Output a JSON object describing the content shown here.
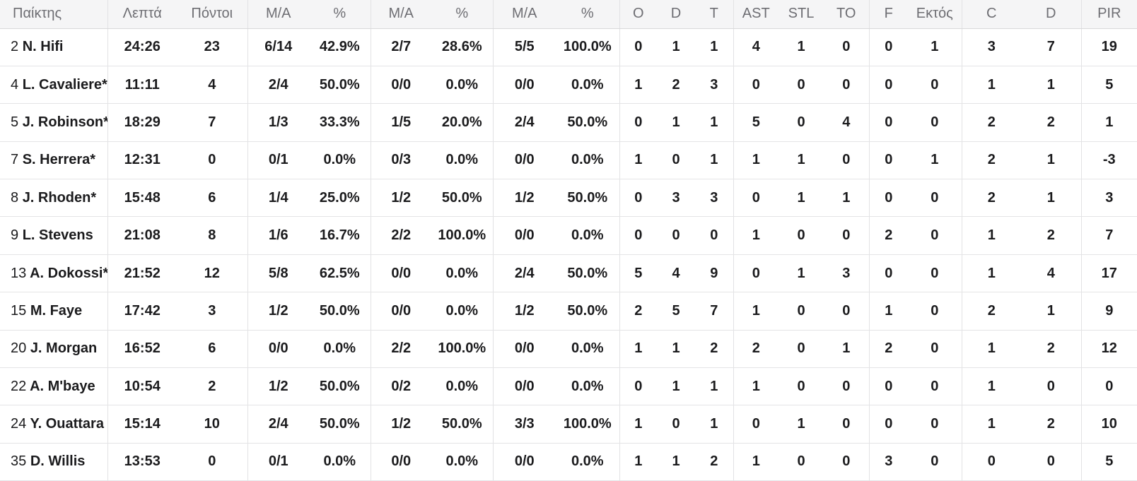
{
  "table": {
    "columns": [
      {
        "label": "Παίκτης"
      },
      {
        "label": "Λεπτά"
      },
      {
        "label": "Πόντοι"
      },
      {
        "label": "M/A"
      },
      {
        "label": "%"
      },
      {
        "label": "M/A"
      },
      {
        "label": "%"
      },
      {
        "label": "M/A"
      },
      {
        "label": "%"
      },
      {
        "label": "O"
      },
      {
        "label": "D"
      },
      {
        "label": "T"
      },
      {
        "label": "AST"
      },
      {
        "label": "STL"
      },
      {
        "label": "TO"
      },
      {
        "label": "F"
      },
      {
        "label": "Εκτός"
      },
      {
        "label": "C"
      },
      {
        "label": "D"
      },
      {
        "label": "PIR"
      }
    ],
    "rows": [
      {
        "number": "2",
        "name": "N. Hifi",
        "cells": [
          "24:26",
          "23",
          "6/14",
          "42.9%",
          "2/7",
          "28.6%",
          "5/5",
          "100.0%",
          "0",
          "1",
          "1",
          "4",
          "1",
          "0",
          "0",
          "1",
          "3",
          "7",
          "19"
        ]
      },
      {
        "number": "4",
        "name": "L. Cavaliere*",
        "cells": [
          "11:11",
          "4",
          "2/4",
          "50.0%",
          "0/0",
          "0.0%",
          "0/0",
          "0.0%",
          "1",
          "2",
          "3",
          "0",
          "0",
          "0",
          "0",
          "0",
          "1",
          "1",
          "5"
        ]
      },
      {
        "number": "5",
        "name": "J. Robinson*",
        "cells": [
          "18:29",
          "7",
          "1/3",
          "33.3%",
          "1/5",
          "20.0%",
          "2/4",
          "50.0%",
          "0",
          "1",
          "1",
          "5",
          "0",
          "4",
          "0",
          "0",
          "2",
          "2",
          "1"
        ]
      },
      {
        "number": "7",
        "name": "S. Herrera*",
        "cells": [
          "12:31",
          "0",
          "0/1",
          "0.0%",
          "0/3",
          "0.0%",
          "0/0",
          "0.0%",
          "1",
          "0",
          "1",
          "1",
          "1",
          "0",
          "0",
          "1",
          "2",
          "1",
          "-3"
        ]
      },
      {
        "number": "8",
        "name": "J. Rhoden*",
        "cells": [
          "15:48",
          "6",
          "1/4",
          "25.0%",
          "1/2",
          "50.0%",
          "1/2",
          "50.0%",
          "0",
          "3",
          "3",
          "0",
          "1",
          "1",
          "0",
          "0",
          "2",
          "1",
          "3"
        ]
      },
      {
        "number": "9",
        "name": "L. Stevens",
        "cells": [
          "21:08",
          "8",
          "1/6",
          "16.7%",
          "2/2",
          "100.0%",
          "0/0",
          "0.0%",
          "0",
          "0",
          "0",
          "1",
          "0",
          "0",
          "2",
          "0",
          "1",
          "2",
          "7"
        ]
      },
      {
        "number": "13",
        "name": "A. Dokossi*",
        "cells": [
          "21:52",
          "12",
          "5/8",
          "62.5%",
          "0/0",
          "0.0%",
          "2/4",
          "50.0%",
          "5",
          "4",
          "9",
          "0",
          "1",
          "3",
          "0",
          "0",
          "1",
          "4",
          "17"
        ]
      },
      {
        "number": "15",
        "name": "M. Faye",
        "cells": [
          "17:42",
          "3",
          "1/2",
          "50.0%",
          "0/0",
          "0.0%",
          "1/2",
          "50.0%",
          "2",
          "5",
          "7",
          "1",
          "0",
          "0",
          "1",
          "0",
          "2",
          "1",
          "9"
        ]
      },
      {
        "number": "20",
        "name": "J. Morgan",
        "cells": [
          "16:52",
          "6",
          "0/0",
          "0.0%",
          "2/2",
          "100.0%",
          "0/0",
          "0.0%",
          "1",
          "1",
          "2",
          "2",
          "0",
          "1",
          "2",
          "0",
          "1",
          "2",
          "12"
        ]
      },
      {
        "number": "22",
        "name": "A. M'baye",
        "cells": [
          "10:54",
          "2",
          "1/2",
          "50.0%",
          "0/2",
          "0.0%",
          "0/0",
          "0.0%",
          "0",
          "1",
          "1",
          "1",
          "0",
          "0",
          "0",
          "0",
          "1",
          "0",
          "0"
        ]
      },
      {
        "number": "24",
        "name": "Y. Ouattara",
        "cells": [
          "15:14",
          "10",
          "2/4",
          "50.0%",
          "1/2",
          "50.0%",
          "3/3",
          "100.0%",
          "1",
          "0",
          "1",
          "0",
          "1",
          "0",
          "0",
          "0",
          "1",
          "2",
          "10"
        ]
      },
      {
        "number": "35",
        "name": "D. Willis",
        "cells": [
          "13:53",
          "0",
          "0/1",
          "0.0%",
          "0/0",
          "0.0%",
          "0/0",
          "0.0%",
          "1",
          "1",
          "2",
          "1",
          "0",
          "0",
          "3",
          "0",
          "0",
          "0",
          "5"
        ]
      }
    ]
  },
  "colors": {
    "header_bg": "#f5f5f6",
    "header_text": "#6e6e73",
    "body_text": "#1b1b1d",
    "grid_line": "#e4e4e6"
  }
}
